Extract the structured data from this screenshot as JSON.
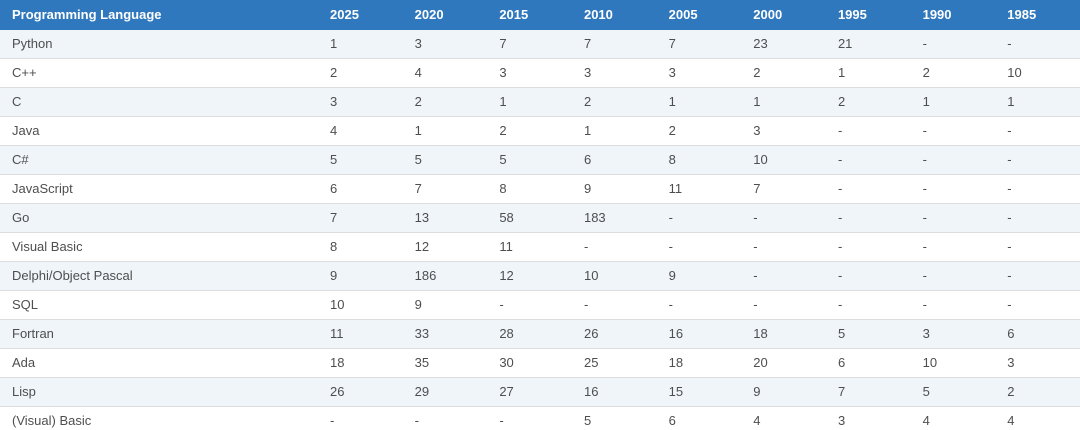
{
  "theme": {
    "header_bg": "#3078bd",
    "header_text": "#ffffff",
    "row_alt_bg": "#f0f5fa",
    "row_bg": "#ffffff",
    "cell_text": "#4e4e4e",
    "row_border": "#dddddd"
  },
  "chart_data": {
    "type": "table",
    "columns": [
      "Programming Language",
      "2025",
      "2020",
      "2015",
      "2010",
      "2005",
      "2000",
      "1995",
      "1990",
      "1985"
    ],
    "rows": [
      [
        "Python",
        "1",
        "3",
        "7",
        "7",
        "7",
        "23",
        "21",
        "-",
        "-"
      ],
      [
        "C++",
        "2",
        "4",
        "3",
        "3",
        "3",
        "2",
        "1",
        "2",
        "10"
      ],
      [
        "C",
        "3",
        "2",
        "1",
        "2",
        "1",
        "1",
        "2",
        "1",
        "1"
      ],
      [
        "Java",
        "4",
        "1",
        "2",
        "1",
        "2",
        "3",
        "-",
        "-",
        "-"
      ],
      [
        "C#",
        "5",
        "5",
        "5",
        "6",
        "8",
        "10",
        "-",
        "-",
        "-"
      ],
      [
        "JavaScript",
        "6",
        "7",
        "8",
        "9",
        "11",
        "7",
        "-",
        "-",
        "-"
      ],
      [
        "Go",
        "7",
        "13",
        "58",
        "183",
        "-",
        "-",
        "-",
        "-",
        "-"
      ],
      [
        "Visual Basic",
        "8",
        "12",
        "11",
        "-",
        "-",
        "-",
        "-",
        "-",
        "-"
      ],
      [
        "Delphi/Object Pascal",
        "9",
        "186",
        "12",
        "10",
        "9",
        "-",
        "-",
        "-",
        "-"
      ],
      [
        "SQL",
        "10",
        "9",
        "-",
        "-",
        "-",
        "-",
        "-",
        "-",
        "-"
      ],
      [
        "Fortran",
        "11",
        "33",
        "28",
        "26",
        "16",
        "18",
        "5",
        "3",
        "6"
      ],
      [
        "Ada",
        "18",
        "35",
        "30",
        "25",
        "18",
        "20",
        "6",
        "10",
        "3"
      ],
      [
        "Lisp",
        "26",
        "29",
        "27",
        "16",
        "15",
        "9",
        "7",
        "5",
        "2"
      ],
      [
        "(Visual) Basic",
        "-",
        "-",
        "-",
        "5",
        "6",
        "4",
        "3",
        "4",
        "4"
      ]
    ]
  }
}
